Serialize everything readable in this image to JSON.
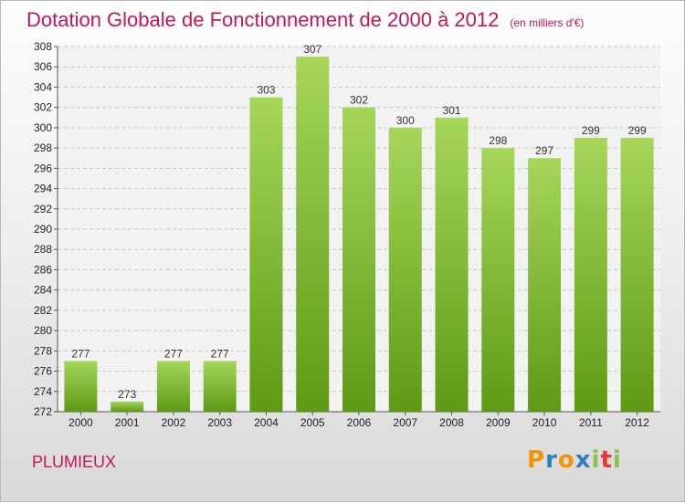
{
  "header": {
    "title": "Dotation Globale de Fonctionnement de 2000 à 2012",
    "unit_note": "(en milliers d'€)"
  },
  "footer": {
    "commune": "PLUMIEUX",
    "logo_letters": [
      "P",
      "r",
      "o",
      "x",
      "i",
      "t",
      "i"
    ]
  },
  "colors": {
    "bar_light": "#a6d65a",
    "bar_dark": "#5e9a14",
    "title": "#c2185b",
    "logo": [
      "#f29400",
      "#2d7fc1",
      "#f29400",
      "#2d7fc1",
      "#8bc34a",
      "#e53935",
      "#8bc34a"
    ]
  },
  "chart_data": {
    "type": "bar",
    "title": "Dotation Globale de Fonctionnement de 2000 à 2012",
    "subtitle": "(en milliers d'€)",
    "categories": [
      "2000",
      "2001",
      "2002",
      "2003",
      "2004",
      "2005",
      "2006",
      "2007",
      "2008",
      "2009",
      "2010",
      "2011",
      "2012"
    ],
    "values": [
      277,
      273,
      277,
      277,
      303,
      307,
      302,
      300,
      301,
      298,
      297,
      299,
      299
    ],
    "ylim": [
      272,
      308
    ],
    "yticks": [
      272,
      274,
      276,
      278,
      280,
      282,
      284,
      286,
      288,
      290,
      292,
      294,
      296,
      298,
      300,
      302,
      304,
      306,
      308
    ],
    "grid": true,
    "data_labels": true
  }
}
